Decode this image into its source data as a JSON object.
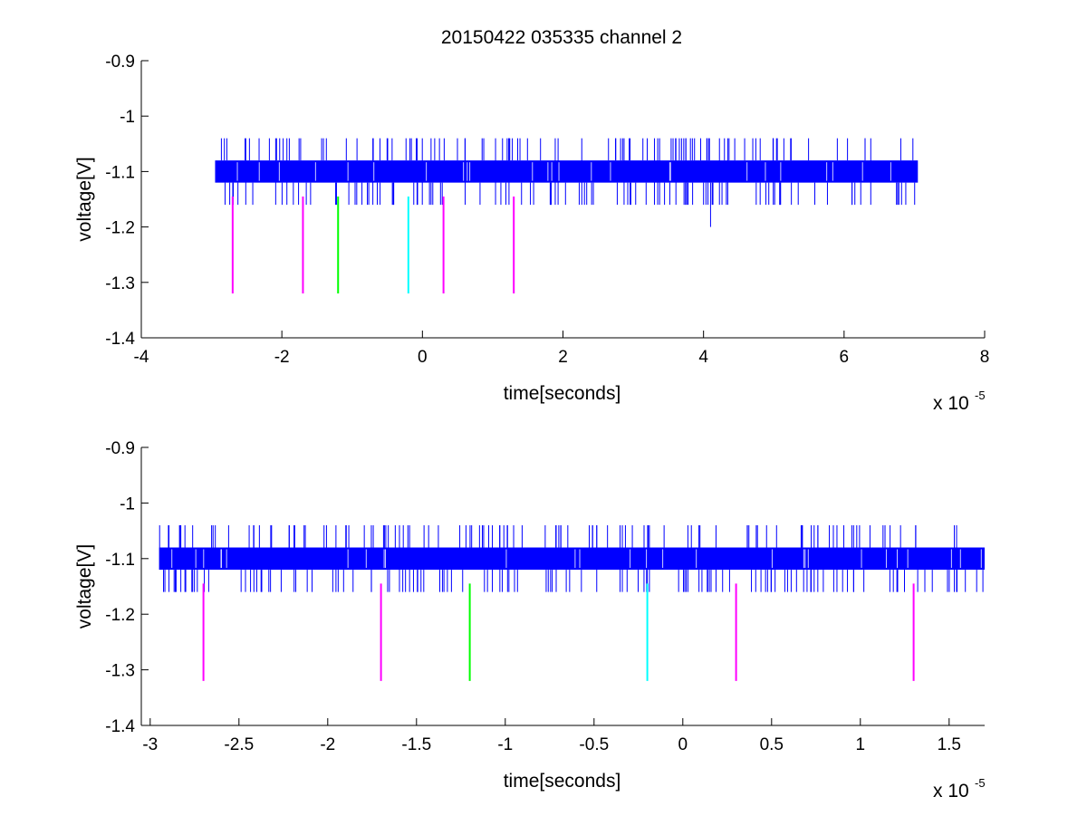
{
  "figure_title": "20150422 035335 channel 2",
  "chart_data": [
    {
      "type": "line",
      "title": "20150422 035335 channel 2",
      "xlabel": "time[seconds]",
      "ylabel": "voltage[V]",
      "x_multiplier_label": "x 10",
      "x_multiplier_exp": "-5",
      "xlim": [
        -4,
        8
      ],
      "ylim": [
        -1.4,
        -0.9
      ],
      "xticks": [
        -4,
        -2,
        0,
        2,
        4,
        6,
        8
      ],
      "xtick_labels": [
        "-4",
        "-2",
        "0",
        "2",
        "4",
        "6",
        "8"
      ],
      "yticks": [
        -0.9,
        -1,
        -1.1,
        -1.2,
        -1.3,
        -1.4
      ],
      "ytick_labels": [
        "-0.9",
        "-1",
        "-1.1",
        "-1.2",
        "-1.3",
        "-1.4"
      ],
      "signal": {
        "name": "",
        "color": "#0000ff",
        "x_range": [
          -2.95,
          7.05
        ],
        "band": [
          -1.12,
          -1.08
        ],
        "spike_high": -1.04,
        "spike_low": -1.16,
        "outlier": {
          "x": 4.1,
          "y": -1.2
        }
      },
      "markers": [
        {
          "x": -2.7,
          "y_top": -1.145,
          "y_bottom": -1.32,
          "color": "#ff00ff"
        },
        {
          "x": -1.7,
          "y_top": -1.145,
          "y_bottom": -1.32,
          "color": "#ff00ff"
        },
        {
          "x": -1.2,
          "y_top": -1.145,
          "y_bottom": -1.32,
          "color": "#00ff00"
        },
        {
          "x": -0.2,
          "y_top": -1.145,
          "y_bottom": -1.32,
          "color": "#00ffff"
        },
        {
          "x": 0.3,
          "y_top": -1.145,
          "y_bottom": -1.32,
          "color": "#ff00ff"
        },
        {
          "x": 1.3,
          "y_top": -1.145,
          "y_bottom": -1.32,
          "color": "#ff00ff"
        }
      ]
    },
    {
      "type": "line",
      "title": "",
      "xlabel": "time[seconds]",
      "ylabel": "voltage[V]",
      "x_multiplier_label": "x 10",
      "x_multiplier_exp": "-5",
      "xlim": [
        -3.05,
        1.7
      ],
      "ylim": [
        -1.4,
        -0.9
      ],
      "xticks": [
        -3,
        -2.5,
        -2,
        -1.5,
        -1,
        -0.5,
        0,
        0.5,
        1,
        1.5
      ],
      "xtick_labels": [
        "-3",
        "-2.5",
        "-2",
        "-1.5",
        "-1",
        "-0.5",
        "0",
        "0.5",
        "1",
        "1.5"
      ],
      "yticks": [
        -0.9,
        -1,
        -1.1,
        -1.2,
        -1.3,
        -1.4
      ],
      "ytick_labels": [
        "-0.9",
        "-1",
        "-1.1",
        "-1.2",
        "-1.3",
        "-1.4"
      ],
      "signal": {
        "name": "",
        "color": "#0000ff",
        "x_range": [
          -2.95,
          1.7
        ],
        "band": [
          -1.12,
          -1.08
        ],
        "spike_high": -1.04,
        "spike_low": -1.16
      },
      "markers": [
        {
          "x": -2.7,
          "y_top": -1.145,
          "y_bottom": -1.32,
          "color": "#ff00ff"
        },
        {
          "x": -1.7,
          "y_top": -1.145,
          "y_bottom": -1.32,
          "color": "#ff00ff"
        },
        {
          "x": -1.2,
          "y_top": -1.145,
          "y_bottom": -1.32,
          "color": "#00ff00"
        },
        {
          "x": -0.2,
          "y_top": -1.145,
          "y_bottom": -1.32,
          "color": "#00ffff"
        },
        {
          "x": 0.3,
          "y_top": -1.145,
          "y_bottom": -1.32,
          "color": "#ff00ff"
        },
        {
          "x": 1.3,
          "y_top": -1.145,
          "y_bottom": -1.32,
          "color": "#ff00ff"
        }
      ]
    }
  ]
}
